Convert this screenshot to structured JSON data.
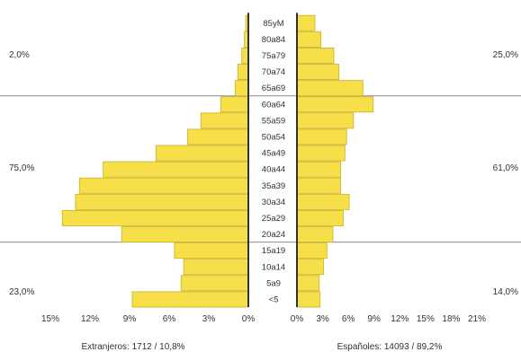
{
  "chart_data": {
    "type": "bar",
    "orientation": "horizontal-butterfly",
    "categories": [
      "<5",
      "5a9",
      "10a14",
      "15a19",
      "20a24",
      "25a29",
      "30a34",
      "35a39",
      "40a44",
      "45a49",
      "50a54",
      "55a59",
      "60a64",
      "65a69",
      "70a74",
      "75a79",
      "80a84",
      "85yM"
    ],
    "series": [
      {
        "name": "Extranjeros: 1712 / 10,8%",
        "side": "left",
        "values": [
          8.8,
          5.1,
          4.9,
          5.6,
          9.6,
          14.1,
          13.1,
          12.8,
          11.0,
          7.0,
          4.6,
          3.6,
          2.1,
          1.0,
          0.8,
          0.5,
          0.3,
          0.2
        ]
      },
      {
        "name": "Españoles: 14093 / 89,2%",
        "side": "right",
        "values": [
          2.7,
          2.6,
          3.1,
          3.5,
          4.2,
          5.4,
          6.1,
          5.1,
          5.1,
          5.6,
          5.8,
          6.6,
          8.9,
          7.7,
          4.9,
          4.3,
          2.8,
          2.1
        ]
      }
    ],
    "left_axis": {
      "ticks": [
        15,
        12,
        9,
        6,
        3,
        0
      ],
      "tick_labels": [
        "15%",
        "12%",
        "9%",
        "6%",
        "3%",
        "0%"
      ],
      "max": 15
    },
    "right_axis": {
      "ticks": [
        0,
        3,
        6,
        9,
        12,
        15,
        18,
        21
      ],
      "tick_labels": [
        "0%",
        "3%",
        "6%",
        "9%",
        "12%",
        "15%",
        "18%",
        "21%"
      ],
      "max": 21
    },
    "group_labels": {
      "left": [
        {
          "text": "2,0%",
          "group": "65+"
        },
        {
          "text": "75,0%",
          "group": "15-64"
        },
        {
          "text": "23,0%",
          "group": "<15"
        }
      ],
      "right": [
        {
          "text": "25,0%",
          "group": "65+"
        },
        {
          "text": "61,0%",
          "group": "15-64"
        },
        {
          "text": "14,0%",
          "group": "<15"
        }
      ]
    },
    "group_dividers_between": [
      "60a64|65a69",
      "15a19|20a24"
    ],
    "bar_color": "#f7df4a",
    "bar_edge_color": "#c9b22a",
    "axis_color": "#333333",
    "divider_color": "#8a8a8a"
  }
}
